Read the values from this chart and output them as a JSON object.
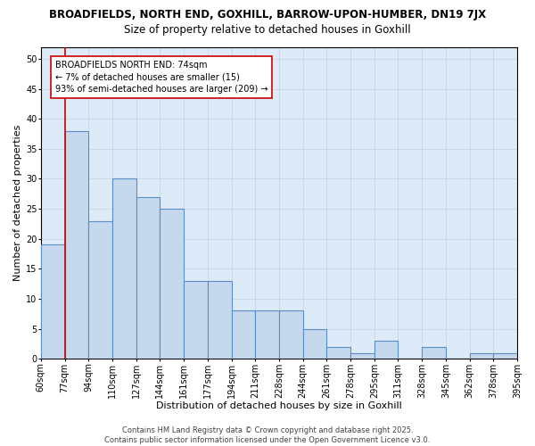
{
  "title1": "BROADFIELDS, NORTH END, GOXHILL, BARROW-UPON-HUMBER, DN19 7JX",
  "title2": "Size of property relative to detached houses in Goxhill",
  "xlabel": "Distribution of detached houses by size in Goxhill",
  "ylabel": "Number of detached properties",
  "categories": [
    "60sqm",
    "77sqm",
    "94sqm",
    "110sqm",
    "127sqm",
    "144sqm",
    "161sqm",
    "177sqm",
    "194sqm",
    "211sqm",
    "228sqm",
    "244sqm",
    "261sqm",
    "278sqm",
    "295sqm",
    "311sqm",
    "328sqm",
    "345sqm",
    "362sqm",
    "378sqm",
    "395sqm"
  ],
  "values": [
    19,
    38,
    23,
    30,
    27,
    25,
    13,
    13,
    8,
    8,
    8,
    5,
    2,
    1,
    3,
    0,
    2,
    0,
    1,
    1
  ],
  "bar_color": "#c5d8ee",
  "bar_edge_color": "#5b8ec4",
  "bar_edge_width": 0.8,
  "marker_color": "#cc0000",
  "ylim": [
    0,
    52
  ],
  "yticks": [
    0,
    5,
    10,
    15,
    20,
    25,
    30,
    35,
    40,
    45,
    50
  ],
  "grid_color": "#c8d8e8",
  "bg_color": "#ddeaf7",
  "annotation_text": "BROADFIELDS NORTH END: 74sqm\n← 7% of detached houses are smaller (15)\n93% of semi-detached houses are larger (209) →",
  "annotation_box_color": "#ffffff",
  "annotation_box_edge": "#cc0000",
  "footer": "Contains HM Land Registry data © Crown copyright and database right 2025.\nContains public sector information licensed under the Open Government Licence v3.0.",
  "title1_fontsize": 8.5,
  "title2_fontsize": 8.5,
  "xlabel_fontsize": 8,
  "ylabel_fontsize": 8,
  "tick_fontsize": 7,
  "annotation_fontsize": 7,
  "footer_fontsize": 6
}
